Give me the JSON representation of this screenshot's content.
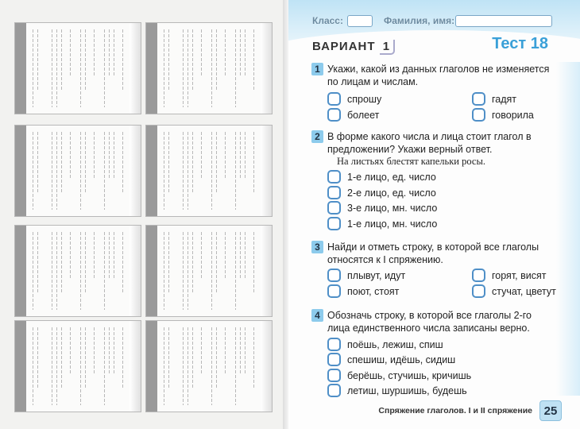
{
  "header": {
    "class_label": "Класс:",
    "name_label": "Фамилия, имя:"
  },
  "variant": {
    "label": "ВАРИАНТ",
    "number": "1"
  },
  "test_title": "Тест 18",
  "questions": [
    {
      "number": "1",
      "text": "Укажи, какой из данных глаголов не изменяется по лицам и числам.",
      "options": [
        "спрошу",
        "гадят",
        "болеет",
        "говорила"
      ]
    },
    {
      "number": "2",
      "text": "В форме какого числа и лица стоит глагол в предложении? Укажи верный ответ.",
      "example": "На листьях блестят капельки росы.",
      "options": [
        "1-е лицо, ед. число",
        "2-е лицо, ед. число",
        "3-е лицо, мн. число",
        "1-е лицо, мн. число"
      ]
    },
    {
      "number": "3",
      "text": "Найди и отметь строку, в которой все глаголы относятся к I спряжению.",
      "options": [
        "плывут, идут",
        "горят, висят",
        "поют, стоят",
        "стучат, цветут"
      ]
    },
    {
      "number": "4",
      "text": "Обозначь строку, в которой все глаголы 2-го лица единственного числа записаны верно.",
      "options": [
        "поёшь, лежиш, спиш",
        "спешиш, идёшь, сидиш",
        "берёшь, стучишь, кричишь",
        "летиш, шуршишь, будешь"
      ]
    }
  ],
  "footer": {
    "section": "Спряжение глаголов. I и II спряжение",
    "page": "25"
  },
  "colors": {
    "accent": "#3aa0d8",
    "badge": "#8dcbec",
    "checkbox": "#4f8fc7"
  }
}
